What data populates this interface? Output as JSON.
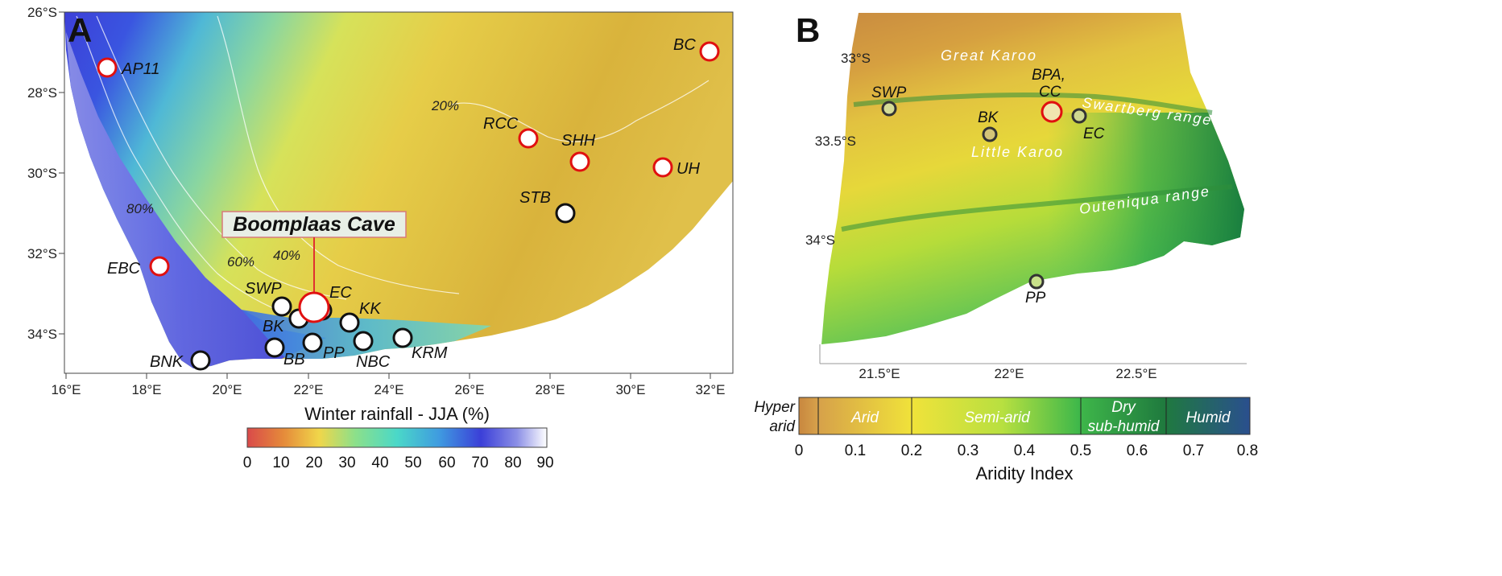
{
  "panel_a": {
    "letter": "A",
    "lat_ticks": [
      "26°S",
      "28°S",
      "30°S",
      "32°S",
      "34°S"
    ],
    "lon_ticks": [
      "16°E",
      "18°E",
      "20°E",
      "22°E",
      "24°E",
      "26°E",
      "28°E",
      "30°E",
      "32°E"
    ],
    "contour_labels": [
      "20%",
      "40%",
      "60%",
      "80%"
    ],
    "highlight_label": "Boomplaas Cave",
    "sites": [
      {
        "code": "AP11",
        "color": "red"
      },
      {
        "code": "BC",
        "color": "red"
      },
      {
        "code": "RCC",
        "color": "red"
      },
      {
        "code": "SHH",
        "color": "red"
      },
      {
        "code": "UH",
        "color": "red"
      },
      {
        "code": "STB",
        "color": "black"
      },
      {
        "code": "EBC",
        "color": "red"
      },
      {
        "code": "SWP",
        "color": "black"
      },
      {
        "code": "EC",
        "color": "black"
      },
      {
        "code": "KK",
        "color": "black"
      },
      {
        "code": "BK",
        "color": "black"
      },
      {
        "code": "BB",
        "color": "black"
      },
      {
        "code": "PP",
        "color": "black"
      },
      {
        "code": "NBC",
        "color": "black"
      },
      {
        "code": "KRM",
        "color": "black"
      },
      {
        "code": "BNK",
        "color": "black"
      }
    ],
    "colorbar": {
      "title": "Winter rainfall - JJA (%)",
      "ticks": [
        "0",
        "10",
        "20",
        "30",
        "40",
        "50",
        "60",
        "70",
        "80",
        "90"
      ]
    }
  },
  "panel_b": {
    "letter": "B",
    "lat_ticks": [
      "33°S",
      "33.5°S",
      "34°S"
    ],
    "lon_ticks": [
      "21.5°E",
      "22°E",
      "22.5°E"
    ],
    "region_labels": {
      "great_karoo": "Great Karoo",
      "little_karoo": "Little Karoo",
      "swartberg": "Swartberg range",
      "outeniqua": "Outeniqua range"
    },
    "sites": [
      {
        "code": "SWP"
      },
      {
        "code": "BK"
      },
      {
        "code": "BPA, CC",
        "line1": "BPA,",
        "line2": "CC"
      },
      {
        "code": "EC"
      },
      {
        "code": "PP"
      }
    ],
    "colorbar": {
      "title": "Aridity Index",
      "ticks": [
        "0",
        "0.1",
        "0.2",
        "0.3",
        "0.4",
        "0.5",
        "0.6",
        "0.7",
        "0.8"
      ],
      "classes": {
        "hyper_arid_1": "Hyper",
        "hyper_arid_2": "arid",
        "arid": "Arid",
        "semi_arid": "Semi-arid",
        "dry_sub_humid_1": "Dry",
        "dry_sub_humid_2": "sub-humid",
        "humid": "Humid"
      }
    }
  }
}
